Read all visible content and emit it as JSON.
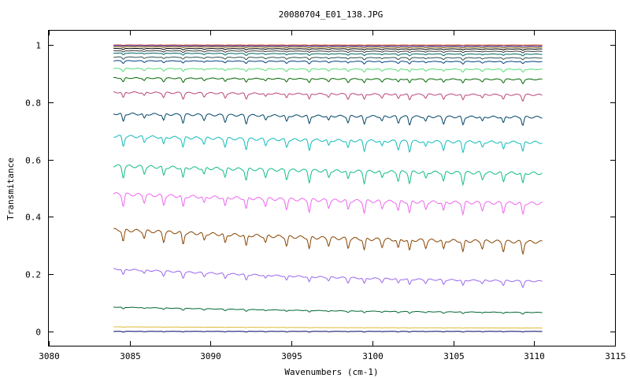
{
  "chart_data": {
    "type": "line",
    "title": "20080704_E01_138.JPG",
    "xlabel": "Wavenumbers (cm-1)",
    "ylabel": "Transmitance",
    "xlim": [
      3080,
      3115
    ],
    "ylim": [
      -0.05,
      1.05
    ],
    "xticks": [
      3080,
      3085,
      3090,
      3095,
      3100,
      3105,
      3110,
      3115
    ],
    "yticks": [
      0,
      0.2,
      0.4,
      0.6,
      0.8,
      1
    ],
    "grid": false,
    "legend": "none",
    "x_range_of_data": [
      3084,
      3110.5
    ],
    "absorption_lines": [
      3084.6,
      3085.9,
      3087.1,
      3088.3,
      3089.6,
      3090.9,
      3092.2,
      3093.4,
      3094.7,
      3096.1,
      3097.3,
      3098.5,
      3099.5,
      3100.6,
      3101.6,
      3102.3,
      3103.3,
      3104.4,
      3105.6,
      3106.8,
      3108.1,
      3109.3
    ],
    "series": [
      {
        "color": "#cc3300",
        "start": 1.0,
        "end": 1.0,
        "dip": 0.001
      },
      {
        "color": "#3333cc",
        "start": 0.998,
        "end": 0.996,
        "dip": 0.002
      },
      {
        "color": "#996600",
        "start": 0.994,
        "end": 0.992,
        "dip": 0.003
      },
      {
        "color": "#000000",
        "start": 0.988,
        "end": 0.986,
        "dip": 0.004
      },
      {
        "color": "#333333",
        "start": 0.98,
        "end": 0.978,
        "dip": 0.005
      },
      {
        "color": "#006666",
        "start": 0.972,
        "end": 0.968,
        "dip": 0.006
      },
      {
        "color": "#2f4f4f",
        "start": 0.958,
        "end": 0.955,
        "dip": 0.007
      },
      {
        "color": "#004080",
        "start": 0.945,
        "end": 0.942,
        "dip": 0.008
      },
      {
        "color": "#55dd77",
        "start": 0.918,
        "end": 0.915,
        "dip": 0.01
      },
      {
        "color": "#006600",
        "start": 0.885,
        "end": 0.88,
        "dip": 0.014
      },
      {
        "color": "#bb4477",
        "start": 0.835,
        "end": 0.826,
        "dip": 0.02
      },
      {
        "color": "#004466",
        "start": 0.76,
        "end": 0.748,
        "dip": 0.028
      },
      {
        "color": "#11bbbb",
        "start": 0.682,
        "end": 0.66,
        "dip": 0.034
      },
      {
        "color": "#11bb88",
        "start": 0.578,
        "end": 0.552,
        "dip": 0.038
      },
      {
        "color": "#ee66ee",
        "start": 0.48,
        "end": 0.447,
        "dip": 0.04
      },
      {
        "color": "#884400",
        "start": 0.355,
        "end": 0.312,
        "dip": 0.04
      },
      {
        "color": "#9966ee",
        "start": 0.218,
        "end": 0.175,
        "dip": 0.02
      },
      {
        "color": "#006633",
        "start": 0.085,
        "end": 0.066,
        "dip": 0.006
      },
      {
        "color": "#ddbb33",
        "start": 0.016,
        "end": 0.012,
        "dip": 0.001
      },
      {
        "color": "#000066",
        "start": 0.0,
        "end": 0.0,
        "dip": 0.002
      }
    ]
  }
}
